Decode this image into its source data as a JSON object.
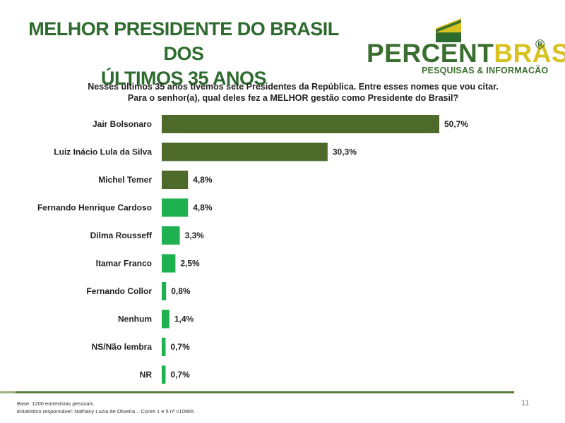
{
  "title_line1": "MELHOR PRESIDENTE DO BRASIL DOS",
  "title_line2": "ÚLTIMOS 35 ANOS",
  "logo": {
    "text_part1": "PERCENT",
    "text_part2": "BRASIL",
    "registered": "®",
    "subtitle": "PESQUISAS & INFORMACÃO"
  },
  "question_line1": "Nesses últimos 35 anos tivemos sete Presidentes da República. Entre esses nomes que vou citar.",
  "question_line2": "Para o senhor(a), qual deles fez a MELHOR gestão como Presidente do Brasil?",
  "chart_data": {
    "type": "bar",
    "orientation": "horizontal",
    "categories": [
      "Jair Bolsonaro",
      "Luiz Inácio Lula da Silva",
      "Michel Temer",
      "Fernando Henrique Cardoso",
      "Dilma Rousseff",
      "Itamar Franco",
      "Fernando Collor",
      "Nenhum",
      "NS/Não lembra",
      "NR"
    ],
    "values": [
      50.7,
      30.3,
      4.8,
      4.8,
      3.3,
      2.5,
      0.8,
      1.4,
      0.7,
      0.7
    ],
    "labels": [
      "50,7%",
      "30,3%",
      "4,8%",
      "4,8%",
      "3,3%",
      "2,5%",
      "0,8%",
      "1,4%",
      "0,7%",
      "0,7%"
    ],
    "colors": [
      "#4d6a2b",
      "#4d6a2b",
      "#4d6a2b",
      "#1fb04f",
      "#1fb04f",
      "#1fb04f",
      "#1fb04f",
      "#1fb04f",
      "#1fb04f",
      "#1fb04f"
    ],
    "xlim": [
      0,
      50.7
    ],
    "grid": false,
    "legend": "none"
  },
  "footer": {
    "base": "Base: 1200 entrevistas pessoais.",
    "statistician": "Estatístico responsável: Nathany Luzia de Oliveira – Conre 1 e 5 nº c10965",
    "page_number": "11"
  }
}
